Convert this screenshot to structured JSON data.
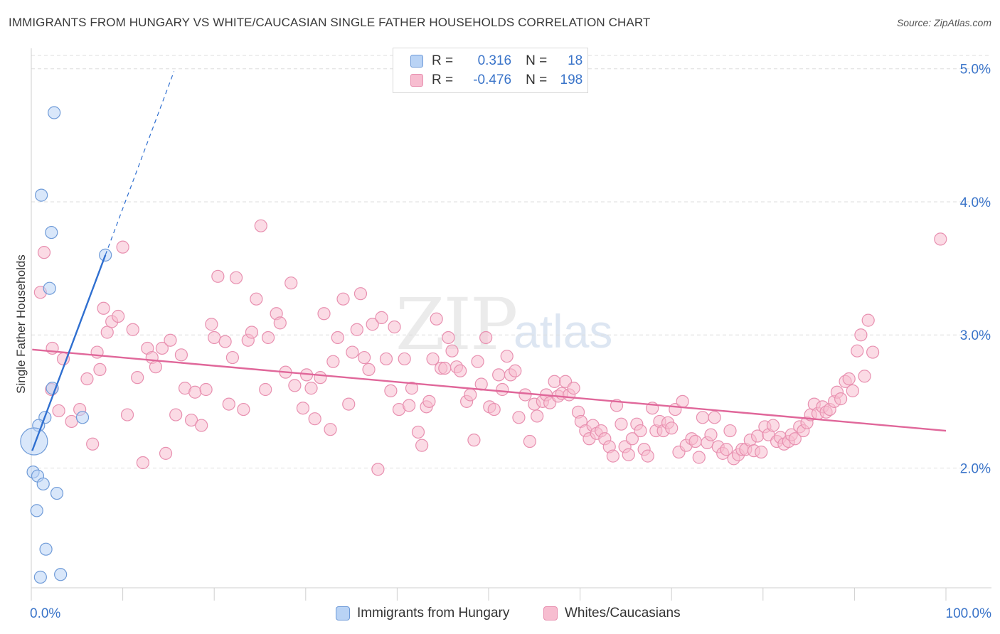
{
  "title": "IMMIGRANTS FROM HUNGARY VS WHITE/CAUCASIAN SINGLE FATHER HOUSEHOLDS CORRELATION CHART",
  "source": "Source: ZipAtlas.com",
  "watermark": {
    "zip": "ZIP",
    "atlas": "atlas"
  },
  "colors": {
    "blue_fill": "#b9d3f5",
    "blue_stroke": "#6f9bd8",
    "blue_line": "#2f6fd0",
    "pink_fill": "#f7bdd0",
    "pink_stroke": "#e890b0",
    "pink_line": "#e0679a",
    "tick_label": "#3a74c9",
    "grid": "#dddddd"
  },
  "legend": {
    "rows": [
      {
        "series": "blue",
        "r_label": "R =",
        "r_value": "0.316",
        "n_label": "N =",
        "n_value": "18"
      },
      {
        "series": "pink",
        "r_label": "R =",
        "r_value": "-0.476",
        "n_label": "N =",
        "n_value": "198"
      }
    ]
  },
  "chart_data": {
    "type": "scatter",
    "title": "IMMIGRANTS FROM HUNGARY VS WHITE/CAUCASIAN SINGLE FATHER HOUSEHOLDS CORRELATION CHART",
    "xlabel": "",
    "ylabel": "Single Father Households",
    "xlim": [
      0,
      100
    ],
    "ylim": [
      1.1,
      5.1
    ],
    "x_tick_labels": [
      "0.0%",
      "100.0%"
    ],
    "y_ticks": [
      2.0,
      3.0,
      4.0,
      5.0
    ],
    "y_tick_labels": [
      "2.0%",
      "3.0%",
      "4.0%",
      "5.0%"
    ],
    "grid": true,
    "legend_position": "top-center",
    "series": [
      {
        "name": "Immigrants from Hungary",
        "color": "blue",
        "trend": {
          "x0": 0.1,
          "y0": 2.13,
          "x1": 8.1,
          "y1": 3.6,
          "dash_to_x": 15.6,
          "dash_to_y": 4.98
        },
        "points": [
          [
            2.5,
            4.67
          ],
          [
            1.1,
            4.05
          ],
          [
            2.2,
            3.77
          ],
          [
            8.1,
            3.6
          ],
          [
            2.0,
            3.35
          ],
          [
            2.3,
            2.6
          ],
          [
            1.5,
            2.38
          ],
          [
            5.6,
            2.38
          ],
          [
            0.8,
            2.32
          ],
          [
            0.3,
            2.2,
            "large"
          ],
          [
            0.2,
            1.97
          ],
          [
            0.7,
            1.94
          ],
          [
            1.3,
            1.88
          ],
          [
            2.8,
            1.81
          ],
          [
            0.6,
            1.68
          ],
          [
            1.6,
            1.39
          ],
          [
            1.0,
            1.18
          ],
          [
            3.2,
            1.2
          ]
        ]
      },
      {
        "name": "Whites/Caucasians",
        "color": "pink",
        "trend": {
          "x0": 0.1,
          "y0": 2.89,
          "x1": 100,
          "y1": 2.28
        },
        "points": [
          [
            1.0,
            3.32
          ],
          [
            1.4,
            3.62
          ],
          [
            2.2,
            2.59
          ],
          [
            2.3,
            2.9
          ],
          [
            3.0,
            2.43
          ],
          [
            3.5,
            2.82
          ],
          [
            4.4,
            2.35
          ],
          [
            5.3,
            2.44
          ],
          [
            6.1,
            2.67
          ],
          [
            6.7,
            2.18
          ],
          [
            7.2,
            2.87
          ],
          [
            7.5,
            2.74
          ],
          [
            7.9,
            3.2
          ],
          [
            8.3,
            3.02
          ],
          [
            8.8,
            3.1
          ],
          [
            9.5,
            3.14
          ],
          [
            10.0,
            3.66
          ],
          [
            10.5,
            2.4
          ],
          [
            11.1,
            3.04
          ],
          [
            11.6,
            2.68
          ],
          [
            12.2,
            2.04
          ],
          [
            12.7,
            2.9
          ],
          [
            13.2,
            2.83
          ],
          [
            13.6,
            2.76
          ],
          [
            14.3,
            2.9
          ],
          [
            14.7,
            2.11
          ],
          [
            15.2,
            2.96
          ],
          [
            15.8,
            2.4
          ],
          [
            16.4,
            2.85
          ],
          [
            16.8,
            2.6
          ],
          [
            17.5,
            2.36
          ],
          [
            17.9,
            2.57
          ],
          [
            18.6,
            2.32
          ],
          [
            19.1,
            2.59
          ],
          [
            19.7,
            3.08
          ],
          [
            20.0,
            2.98
          ],
          [
            20.4,
            3.44
          ],
          [
            21.2,
            2.95
          ],
          [
            21.6,
            2.48
          ],
          [
            22.0,
            2.83
          ],
          [
            22.4,
            3.43
          ],
          [
            23.2,
            2.44
          ],
          [
            23.7,
            2.96
          ],
          [
            24.1,
            3.02
          ],
          [
            24.6,
            3.27
          ],
          [
            25.1,
            3.82
          ],
          [
            25.6,
            2.59
          ],
          [
            25.9,
            2.98
          ],
          [
            26.8,
            3.16
          ],
          [
            27.2,
            3.09
          ],
          [
            27.8,
            2.72
          ],
          [
            28.4,
            3.39
          ],
          [
            28.8,
            2.62
          ],
          [
            29.7,
            2.45
          ],
          [
            30.1,
            2.7
          ],
          [
            30.6,
            2.6
          ],
          [
            31.0,
            2.37
          ],
          [
            31.6,
            2.68
          ],
          [
            32.0,
            3.16
          ],
          [
            32.7,
            2.29
          ],
          [
            33.0,
            2.8
          ],
          [
            33.5,
            2.98
          ],
          [
            34.1,
            3.27
          ],
          [
            34.7,
            2.48
          ],
          [
            35.1,
            2.87
          ],
          [
            35.6,
            3.04
          ],
          [
            36.0,
            3.31
          ],
          [
            36.4,
            2.83
          ],
          [
            36.9,
            2.74
          ],
          [
            37.3,
            3.08
          ],
          [
            37.9,
            1.99
          ],
          [
            38.3,
            3.13
          ],
          [
            38.8,
            2.82
          ],
          [
            39.3,
            2.58
          ],
          [
            39.7,
            3.06
          ],
          [
            40.2,
            2.44
          ],
          [
            40.8,
            2.82
          ],
          [
            41.3,
            2.47
          ],
          [
            41.6,
            2.6
          ],
          [
            42.3,
            2.27
          ],
          [
            42.7,
            2.17
          ],
          [
            43.2,
            2.46
          ],
          [
            43.5,
            2.5
          ],
          [
            43.9,
            2.82
          ],
          [
            44.3,
            3.12
          ],
          [
            44.8,
            2.75
          ],
          [
            45.2,
            2.75
          ],
          [
            45.6,
            2.98
          ],
          [
            46.0,
            2.88
          ],
          [
            46.5,
            2.76
          ],
          [
            46.9,
            2.73
          ],
          [
            47.6,
            2.5
          ],
          [
            48.0,
            2.55
          ],
          [
            48.4,
            2.21
          ],
          [
            48.8,
            2.8
          ],
          [
            49.2,
            2.63
          ],
          [
            49.7,
            2.98
          ],
          [
            50.1,
            2.46
          ],
          [
            50.6,
            2.44
          ],
          [
            51.1,
            2.7
          ],
          [
            51.5,
            2.59
          ],
          [
            52.0,
            2.84
          ],
          [
            52.4,
            2.7
          ],
          [
            52.9,
            2.73
          ],
          [
            53.3,
            2.38
          ],
          [
            54.0,
            2.55
          ],
          [
            54.5,
            2.2
          ],
          [
            55.0,
            2.48
          ],
          [
            55.3,
            2.39
          ],
          [
            55.9,
            2.5
          ],
          [
            56.3,
            2.55
          ],
          [
            56.7,
            2.49
          ],
          [
            57.2,
            2.65
          ],
          [
            57.6,
            2.54
          ],
          [
            58.0,
            2.56
          ],
          [
            58.4,
            2.65
          ],
          [
            58.8,
            2.55
          ],
          [
            59.3,
            2.6
          ],
          [
            59.8,
            2.42
          ],
          [
            60.1,
            2.35
          ],
          [
            60.6,
            2.28
          ],
          [
            61.0,
            2.22
          ],
          [
            61.4,
            2.32
          ],
          [
            61.8,
            2.26
          ],
          [
            62.3,
            2.28
          ],
          [
            62.7,
            2.22
          ],
          [
            63.2,
            2.16
          ],
          [
            63.6,
            2.09
          ],
          [
            64.0,
            2.47
          ],
          [
            64.5,
            2.33
          ],
          [
            64.9,
            2.16
          ],
          [
            65.3,
            2.1
          ],
          [
            65.7,
            2.22
          ],
          [
            66.2,
            2.33
          ],
          [
            66.6,
            2.28
          ],
          [
            67.0,
            2.14
          ],
          [
            67.4,
            2.09
          ],
          [
            67.9,
            2.45
          ],
          [
            68.3,
            2.28
          ],
          [
            68.7,
            2.35
          ],
          [
            69.1,
            2.28
          ],
          [
            69.6,
            2.34
          ],
          [
            70.0,
            2.3
          ],
          [
            70.4,
            2.44
          ],
          [
            70.8,
            2.12
          ],
          [
            71.2,
            2.5
          ],
          [
            71.6,
            2.17
          ],
          [
            72.2,
            2.22
          ],
          [
            72.6,
            2.2
          ],
          [
            73.0,
            2.08
          ],
          [
            73.4,
            2.38
          ],
          [
            73.9,
            2.19
          ],
          [
            74.3,
            2.25
          ],
          [
            74.7,
            2.38
          ],
          [
            75.1,
            2.16
          ],
          [
            75.6,
            2.11
          ],
          [
            76.0,
            2.14
          ],
          [
            76.4,
            2.28
          ],
          [
            76.8,
            2.07
          ],
          [
            77.3,
            2.1
          ],
          [
            77.7,
            2.14
          ],
          [
            78.1,
            2.14
          ],
          [
            78.6,
            2.21
          ],
          [
            79.0,
            2.13
          ],
          [
            79.4,
            2.24
          ],
          [
            79.8,
            2.12
          ],
          [
            80.2,
            2.31
          ],
          [
            80.6,
            2.25
          ],
          [
            81.1,
            2.32
          ],
          [
            81.5,
            2.2
          ],
          [
            81.9,
            2.23
          ],
          [
            82.3,
            2.18
          ],
          [
            82.8,
            2.2
          ],
          [
            83.1,
            2.25
          ],
          [
            83.5,
            2.22
          ],
          [
            84.0,
            2.31
          ],
          [
            84.4,
            2.28
          ],
          [
            84.8,
            2.34
          ],
          [
            85.2,
            2.4
          ],
          [
            85.6,
            2.48
          ],
          [
            86.0,
            2.41
          ],
          [
            86.5,
            2.46
          ],
          [
            86.9,
            2.42
          ],
          [
            87.3,
            2.44
          ],
          [
            87.8,
            2.5
          ],
          [
            88.1,
            2.57
          ],
          [
            88.5,
            2.52
          ],
          [
            89.0,
            2.65
          ],
          [
            89.4,
            2.67
          ],
          [
            89.8,
            2.58
          ],
          [
            90.3,
            2.88
          ],
          [
            90.7,
            3.0
          ],
          [
            91.1,
            2.69
          ],
          [
            91.5,
            3.11
          ],
          [
            92.0,
            2.87
          ],
          [
            99.4,
            3.72
          ]
        ]
      }
    ]
  },
  "bottom_legend": {
    "items": [
      {
        "series": "blue",
        "label": "Immigrants from Hungary"
      },
      {
        "series": "pink",
        "label": "Whites/Caucasians"
      }
    ]
  }
}
